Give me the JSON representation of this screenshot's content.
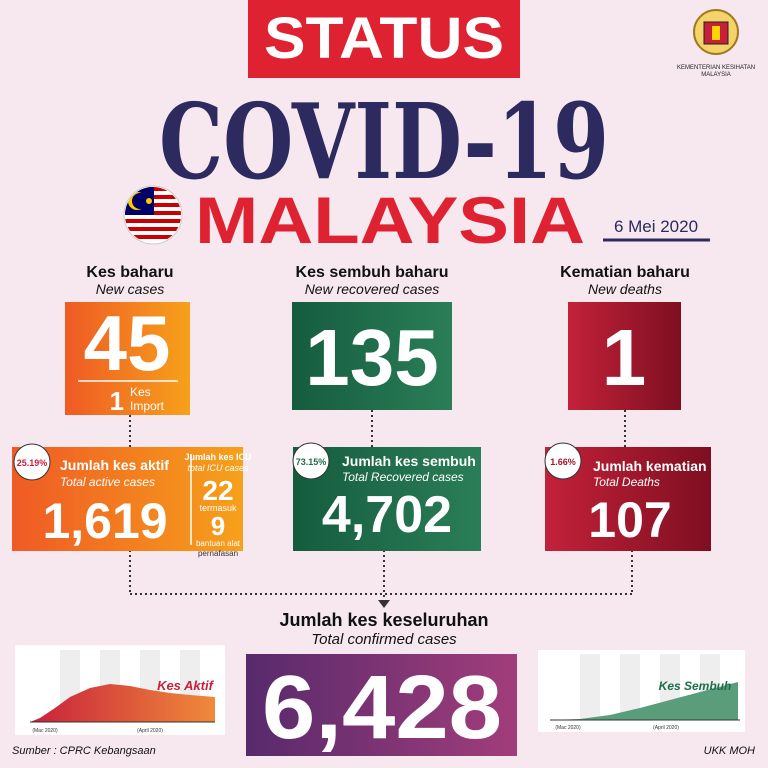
{
  "header": {
    "status": "STATUS",
    "title": "COVID-19",
    "country": "MALAYSIA",
    "date": "6 Mei 2020",
    "ministry": [
      "KEMENTERIAN KESIHATAN",
      "MALAYSIA"
    ]
  },
  "new_cases": {
    "label": "Kes baharu",
    "sublabel": "New cases",
    "value": "45",
    "import_value": "1",
    "import_label": [
      "Kes",
      "Import"
    ]
  },
  "new_recovered": {
    "label": "Kes sembuh baharu",
    "sublabel": "New recovered cases",
    "value": "135"
  },
  "new_deaths": {
    "label": "Kematian baharu",
    "sublabel": "New deaths",
    "value": "1"
  },
  "active": {
    "percent": "25.19%",
    "label": "Jumlah kes aktif",
    "sublabel": "Total active cases",
    "value": "1,619",
    "icu_label": "Jumlah kes ICU",
    "icu_sublabel": "total ICU cases",
    "icu_value": "22",
    "including": "termasuk",
    "ventilator_value": "9",
    "ventilator_label": [
      "bantuan alat",
      "pernafasan"
    ]
  },
  "recovered": {
    "percent": "73.15%",
    "label": "Jumlah kes sembuh",
    "sublabel": "Total Recovered cases",
    "value": "4,702"
  },
  "deaths": {
    "percent": "1.66%",
    "label": "Jumlah kematian",
    "sublabel": "Total Deaths",
    "value": "107"
  },
  "total": {
    "label": "Jumlah kes keseluruhan",
    "sublabel": "Total confirmed cases",
    "value": "6,428"
  },
  "mini_charts": [
    {
      "label": "Kes Aktif",
      "x_labels": [
        "(Mac 2020)",
        "(April 2020)"
      ]
    },
    {
      "label": "Kes Sembuh",
      "x_labels": [
        "(Mac 2020)",
        "(April 2020)"
      ]
    }
  ],
  "footer": {
    "source": "Sumber : CPRC Kebangsaan",
    "credit": "UKK MOH"
  }
}
